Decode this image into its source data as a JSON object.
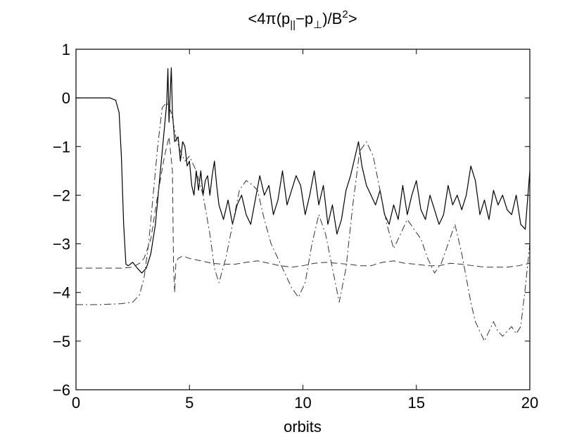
{
  "chart_data": {
    "type": "line",
    "title": {
      "prefix": "<4π(p",
      "sub1": "||",
      "mid": "−p",
      "sub2": "⊥",
      "div": ")/B",
      "sup": "2",
      "suffix": ">"
    },
    "xlabel": "orbits",
    "ylabel": "",
    "xlim": [
      0,
      20
    ],
    "ylim": [
      -6,
      1
    ],
    "x_ticks": [
      0,
      5,
      10,
      15,
      20
    ],
    "x_tick_labels": [
      "0",
      "5",
      "10",
      "15",
      "20"
    ],
    "y_ticks": [
      1,
      0,
      -1,
      -2,
      -3,
      -4,
      -5,
      -6
    ],
    "y_tick_labels": [
      "1",
      "0",
      "−1",
      "−2",
      "−3",
      "−4",
      "−5",
      "−6"
    ],
    "grid": false,
    "series": [
      {
        "style": "solid",
        "color": "#000000",
        "x": [
          0,
          0.5,
          1.0,
          1.5,
          1.75,
          1.9,
          2.0,
          2.1,
          2.2,
          2.3,
          2.5,
          2.7,
          2.9,
          3.1,
          3.3,
          3.5,
          3.7,
          3.9,
          4.0,
          4.05,
          4.1,
          4.2,
          4.25,
          4.35,
          4.5,
          4.6,
          4.7,
          4.8,
          4.9,
          5.0,
          5.1,
          5.2,
          5.3,
          5.4,
          5.5,
          5.6,
          5.7,
          5.8,
          5.9,
          6.0,
          6.1,
          6.2,
          6.3,
          6.5,
          6.7,
          6.9,
          7.1,
          7.3,
          7.5,
          7.7,
          7.9,
          8.1,
          8.3,
          8.5,
          8.7,
          8.9,
          9.1,
          9.3,
          9.5,
          9.7,
          9.9,
          10.1,
          10.3,
          10.5,
          10.7,
          10.9,
          11.1,
          11.3,
          11.5,
          11.7,
          11.9,
          12.1,
          12.3,
          12.45,
          12.6,
          12.8,
          13.0,
          13.2,
          13.4,
          13.6,
          13.8,
          14.0,
          14.2,
          14.4,
          14.6,
          14.8,
          15.0,
          15.2,
          15.4,
          15.6,
          15.8,
          16.0,
          16.2,
          16.4,
          16.6,
          16.8,
          17.0,
          17.2,
          17.4,
          17.6,
          17.8,
          18.0,
          18.2,
          18.4,
          18.6,
          18.8,
          19.0,
          19.2,
          19.4,
          19.6,
          19.8,
          20.0
        ],
        "y": [
          0,
          0,
          0,
          0,
          -0.05,
          -0.3,
          -1.2,
          -2.6,
          -3.42,
          -3.45,
          -3.38,
          -3.5,
          -3.6,
          -3.5,
          -3.2,
          -2.6,
          -1.6,
          -0.6,
          -0.1,
          0.6,
          -0.5,
          0.62,
          -0.3,
          -0.9,
          -0.8,
          -1.3,
          -0.9,
          -1.0,
          -1.4,
          -1.3,
          -1.8,
          -2.0,
          -1.5,
          -1.9,
          -1.5,
          -2.0,
          -1.7,
          -1.6,
          -2.0,
          -1.6,
          -1.3,
          -1.8,
          -2.2,
          -2.5,
          -2.1,
          -2.6,
          -2.2,
          -2.0,
          -2.4,
          -2.6,
          -2.1,
          -1.6,
          -2.0,
          -1.8,
          -2.4,
          -2.1,
          -1.5,
          -2.2,
          -1.9,
          -1.6,
          -1.8,
          -2.4,
          -2.0,
          -1.5,
          -2.2,
          -1.8,
          -2.6,
          -2.2,
          -2.8,
          -2.5,
          -1.9,
          -1.6,
          -1.2,
          -0.9,
          -1.4,
          -1.8,
          -2.0,
          -2.2,
          -1.9,
          -2.4,
          -2.6,
          -2.2,
          -2.5,
          -1.8,
          -2.4,
          -2.0,
          -1.7,
          -2.3,
          -2.5,
          -2.0,
          -2.3,
          -2.6,
          -2.4,
          -1.8,
          -2.2,
          -2.0,
          -2.3,
          -2.0,
          -1.4,
          -1.7,
          -2.4,
          -2.1,
          -2.5,
          -1.9,
          -2.2,
          -2.0,
          -2.3,
          -2.4,
          -2.0,
          -2.6,
          -2.7,
          -1.5
        ]
      },
      {
        "style": "dashed",
        "color": "#333333",
        "x": [
          0,
          1.0,
          2.0,
          2.5,
          2.8,
          3.0,
          3.3,
          3.6,
          3.9,
          4.1,
          4.25,
          4.3,
          4.35,
          4.4,
          4.5,
          4.7,
          5.0,
          5.5,
          6.0,
          6.5,
          7.0,
          7.5,
          8.0,
          8.5,
          9.0,
          9.5,
          10.0,
          10.5,
          11.0,
          11.5,
          12.0,
          12.5,
          13.0,
          13.5,
          14.0,
          14.5,
          15.0,
          15.5,
          16.0,
          16.5,
          17.0,
          17.5,
          18.0,
          18.5,
          19.0,
          19.5,
          20.0
        ],
        "y": [
          -3.5,
          -3.5,
          -3.5,
          -3.48,
          -3.4,
          -3.3,
          -2.9,
          -2.0,
          -1.2,
          -0.8,
          -1.5,
          -3.5,
          -4.0,
          -3.4,
          -3.3,
          -3.25,
          -3.3,
          -3.35,
          -3.4,
          -3.42,
          -3.42,
          -3.38,
          -3.35,
          -3.4,
          -3.45,
          -3.48,
          -3.45,
          -3.4,
          -3.38,
          -3.4,
          -3.42,
          -3.45,
          -3.45,
          -3.38,
          -3.35,
          -3.4,
          -3.42,
          -3.45,
          -3.45,
          -3.4,
          -3.42,
          -3.45,
          -3.48,
          -3.48,
          -3.48,
          -3.45,
          -3.4
        ]
      },
      {
        "style": "dashdot",
        "color": "#333333",
        "x": [
          0,
          1.0,
          2.0,
          2.5,
          2.8,
          3.0,
          3.2,
          3.4,
          3.6,
          3.8,
          4.0,
          4.2,
          4.4,
          4.6,
          4.8,
          5.0,
          5.3,
          5.6,
          5.9,
          6.1,
          6.3,
          6.6,
          6.9,
          7.2,
          7.5,
          7.8,
          8.0,
          8.3,
          8.6,
          8.9,
          9.2,
          9.5,
          9.8,
          10.1,
          10.4,
          10.7,
          11.0,
          11.3,
          11.6,
          11.9,
          12.2,
          12.5,
          12.8,
          13.1,
          13.4,
          13.7,
          14.0,
          14.3,
          14.6,
          14.9,
          15.2,
          15.5,
          15.8,
          16.1,
          16.4,
          16.7,
          17.0,
          17.2,
          17.4,
          17.6,
          17.8,
          18.0,
          18.2,
          18.4,
          18.6,
          18.8,
          19.0,
          19.2,
          19.4,
          19.6,
          19.8,
          20.0
        ],
        "y": [
          -4.25,
          -4.25,
          -4.23,
          -4.2,
          -4.05,
          -3.7,
          -3.0,
          -2.0,
          -1.0,
          -0.2,
          -0.1,
          -0.3,
          -0.8,
          -1.1,
          -1.3,
          -1.2,
          -1.5,
          -2.0,
          -2.8,
          -3.5,
          -3.8,
          -3.3,
          -2.6,
          -1.9,
          -1.7,
          -1.8,
          -1.9,
          -2.5,
          -3.0,
          -3.3,
          -3.6,
          -3.9,
          -4.1,
          -3.8,
          -3.0,
          -2.4,
          -2.8,
          -3.5,
          -4.2,
          -3.5,
          -2.2,
          -1.1,
          -0.9,
          -1.2,
          -1.9,
          -2.6,
          -3.1,
          -2.8,
          -2.5,
          -2.7,
          -2.9,
          -3.3,
          -3.6,
          -3.4,
          -3.0,
          -2.6,
          -3.2,
          -3.7,
          -4.2,
          -4.6,
          -4.8,
          -5.0,
          -4.8,
          -4.6,
          -4.8,
          -4.9,
          -4.8,
          -4.7,
          -4.85,
          -4.7,
          -3.9,
          -3.0
        ]
      }
    ]
  }
}
